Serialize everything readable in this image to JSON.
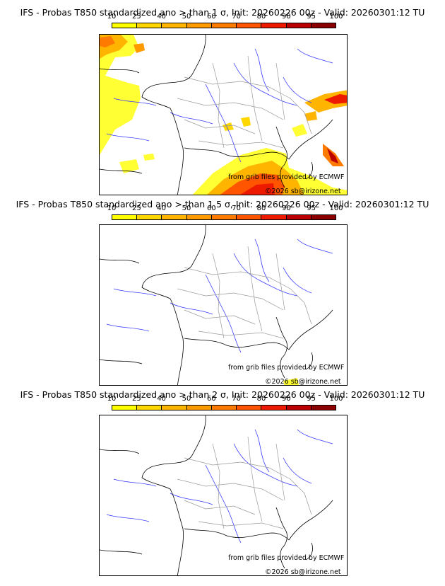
{
  "scale": {
    "tick_labels": [
      "10",
      "25",
      "40",
      "50",
      "60",
      "70",
      "80",
      "90",
      "95",
      "100"
    ],
    "colors": [
      "#ffff00",
      "#ffd700",
      "#ffb400",
      "#ff9a00",
      "#ff7a00",
      "#ff5500",
      "#ee1a00",
      "#bb0000",
      "#8a0000"
    ]
  },
  "panels": [
    {
      "title": "IFS - Probas T850  standardized ano > than 1 σ, Init: 20260226 00z - Valid: 20260301:12 TU",
      "credit_source": "from grib files provided by ECMWF",
      "credit_copyright": "©2026 sb@irizone.net"
    },
    {
      "title": "IFS - Probas T850  standardized ano > than 1.5 σ, Init: 20260226 00z - Valid: 20260301:12 TU",
      "credit_source": "from grib files provided by ECMWF",
      "credit_copyright": "©2026 sb@irizone.net"
    },
    {
      "title": "IFS - Probas T850  standardized ano > than 2 σ, Init: 20260226 00z - Valid: 20260301:12 TU",
      "credit_source": "from grib files provided by ECMWF",
      "credit_copyright": "©2026 sb@irizone.net"
    }
  ]
}
